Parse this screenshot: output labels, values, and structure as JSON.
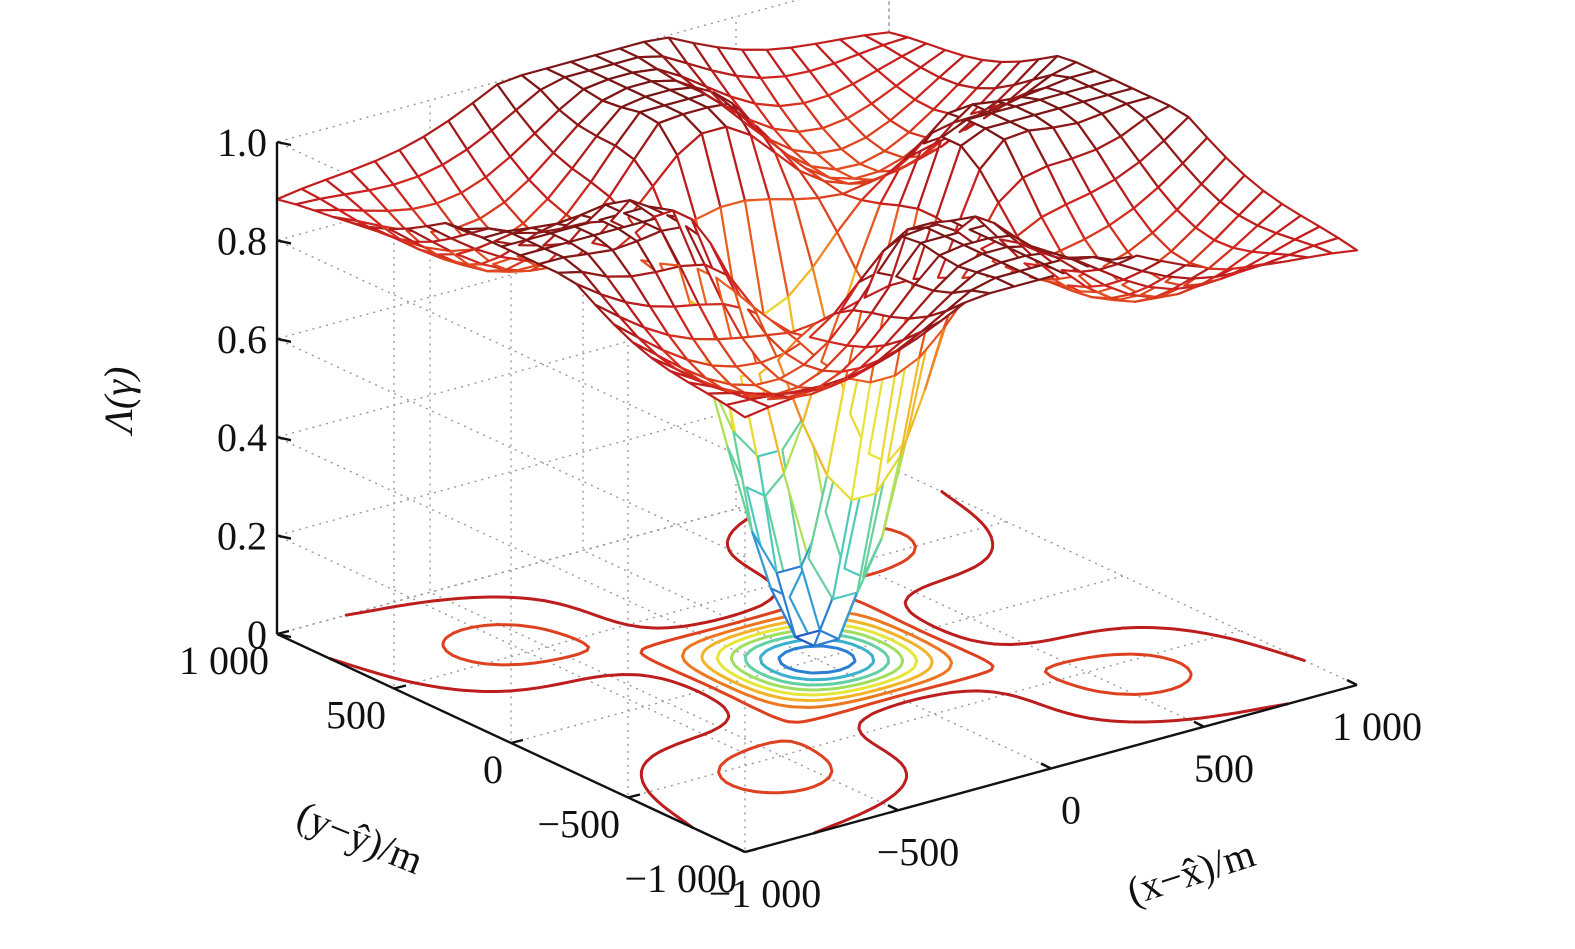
{
  "chart_data": {
    "type": "surface",
    "title": "",
    "xlabel": "(x−x̂)/m",
    "ylabel": "(y−ŷ)/m",
    "zlabel": "Λ(γ)",
    "x_ticks": [
      "−1 000",
      "−500",
      "0",
      "500",
      "1 000"
    ],
    "y_ticks": [
      "−1 000",
      "−500",
      "0",
      "500",
      "1 000"
    ],
    "z_ticks": [
      "0",
      "0.2",
      "0.4",
      "0.6",
      "0.8",
      "1.0"
    ],
    "xlim": [
      -1000,
      1000
    ],
    "ylim": [
      -1000,
      1000
    ],
    "zlim": [
      0,
      1
    ],
    "grid": true,
    "surface": {
      "grid_size": 25,
      "minimum": {
        "x": 0,
        "y": 0,
        "z": 0.02
      },
      "plateau_level": 0.95,
      "ridge_level": 0.78,
      "well_radius": 300
    },
    "contour_levels": [
      0.1,
      0.2,
      0.3,
      0.4,
      0.5,
      0.6,
      0.7,
      0.8,
      0.9
    ],
    "colormap": [
      "#1f3fbf",
      "#2f8fd8",
      "#45c8c8",
      "#8fdc6a",
      "#e6e63a",
      "#f5a623",
      "#e8581f",
      "#cc1f1f",
      "#7a1515"
    ]
  }
}
